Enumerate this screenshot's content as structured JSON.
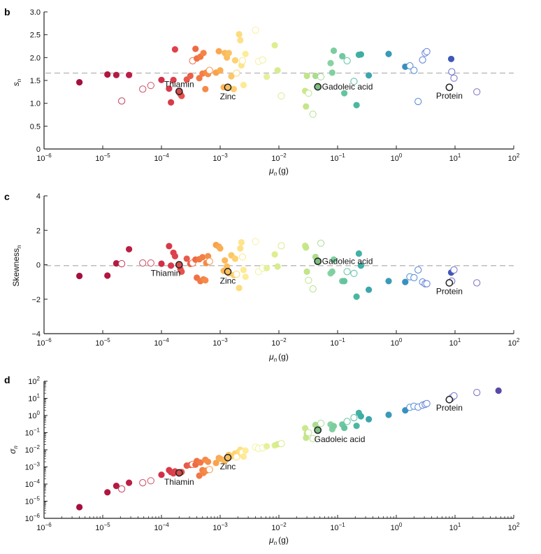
{
  "chart_data": [
    {
      "panel": "b",
      "type": "scatter",
      "title": "",
      "xlabel": "μn (g)",
      "ylabel": "sn",
      "xscale": "log",
      "yscale": "linear",
      "xlim": [
        1e-06,
        100
      ],
      "ylim": [
        0,
        3.0
      ],
      "xticks": [
        "10^-6",
        "10^-5",
        "10^-4",
        "10^-3",
        "10^-2",
        "10^-1",
        "10^0",
        "10^1",
        "10^2"
      ],
      "yticks": [
        "0",
        "0.5",
        "1.0",
        "1.5",
        "2.0",
        "2.5",
        "3.0"
      ],
      "reference_line": {
        "y": 1.66,
        "style": "dashed"
      },
      "annotations": [
        {
          "label": "Thiamin",
          "x": 0.0002,
          "y": 1.26
        },
        {
          "label": "Zinc",
          "x": 0.00135,
          "y": 1.35
        },
        {
          "label": "Gadoleic acid",
          "x": 0.046,
          "y": 1.36
        },
        {
          "label": "Protein",
          "x": 8.0,
          "y": 1.35
        }
      ]
    },
    {
      "panel": "c",
      "type": "scatter",
      "title": "",
      "xlabel": "μn (g)",
      "ylabel": "Skewnessn",
      "xscale": "log",
      "yscale": "linear",
      "xlim": [
        1e-06,
        100
      ],
      "ylim": [
        -4,
        4
      ],
      "xticks": [
        "10^-6",
        "10^-5",
        "10^-4",
        "10^-3",
        "10^-2",
        "10^-1",
        "10^0",
        "10^1",
        "10^2"
      ],
      "yticks": [
        "-4",
        "-2",
        "0",
        "2",
        "4"
      ],
      "reference_line": {
        "y": -0.05,
        "style": "dashed"
      },
      "annotations": [
        {
          "label": "Thiamin",
          "x": 0.0002,
          "y": 0.0
        },
        {
          "label": "Zinc",
          "x": 0.00135,
          "y": -0.4
        },
        {
          "label": "Gadoleic acid",
          "x": 0.046,
          "y": 0.2
        },
        {
          "label": "Protein",
          "x": 8.0,
          "y": -1.05
        }
      ]
    },
    {
      "panel": "d",
      "type": "scatter",
      "title": "",
      "xlabel": "μn (g)",
      "ylabel": "σn",
      "xscale": "log",
      "yscale": "log",
      "xlim": [
        1e-06,
        100
      ],
      "ylim": [
        1e-06,
        100
      ],
      "xticks": [
        "10^-6",
        "10^-5",
        "10^-4",
        "10^-3",
        "10^-2",
        "10^-1",
        "10^0",
        "10^1",
        "10^2"
      ],
      "yticks": [
        "10^-6",
        "10^-5",
        "10^-4",
        "10^-3",
        "10^-2",
        "10^-1",
        "10^0",
        "10^1",
        "10^2"
      ],
      "annotations": [
        {
          "label": "Thiamin",
          "x": 0.0002,
          "y": 0.00045
        },
        {
          "label": "Zinc",
          "x": 0.00135,
          "y": 0.0035
        },
        {
          "label": "Gadoleic acid",
          "x": 0.046,
          "y": 0.14
        },
        {
          "label": "Protein",
          "x": 8.0,
          "y": 8.5
        }
      ]
    }
  ],
  "points": [
    {
      "mu": 4e-06,
      "s": 1.46,
      "skew": -0.65,
      "sigma": 4.5e-06,
      "c": "#a50f3c",
      "open": false
    },
    {
      "mu": 1.2e-05,
      "s": 1.63,
      "skew": -0.63,
      "sigma": 3.3e-05,
      "c": "#b0173f",
      "open": false
    },
    {
      "mu": 1.7e-05,
      "s": 1.62,
      "skew": 0.08,
      "sigma": 7.8e-05,
      "c": "#b51a41",
      "open": false
    },
    {
      "mu": 2.1e-05,
      "s": 1.05,
      "skew": 0.06,
      "sigma": 5.2e-05,
      "c": "#c43c5a",
      "open": true
    },
    {
      "mu": 2.8e-05,
      "s": 1.62,
      "skew": 0.9,
      "sigma": 0.00012,
      "c": "#bb1e44",
      "open": false
    },
    {
      "mu": 4.8e-05,
      "s": 1.31,
      "skew": 0.1,
      "sigma": 0.00012,
      "c": "#cd4a62",
      "open": true
    },
    {
      "mu": 6.6e-05,
      "s": 1.39,
      "skew": 0.1,
      "sigma": 0.000155,
      "c": "#cf4e64",
      "open": true
    },
    {
      "mu": 0.0001,
      "s": 1.51,
      "skew": 0.06,
      "sigma": 0.00035,
      "c": "#d22e46",
      "open": false
    },
    {
      "mu": 0.000135,
      "s": 1.32,
      "skew": 1.08,
      "sigma": 0.00065,
      "c": "#d9384a",
      "open": false
    },
    {
      "mu": 0.000145,
      "s": 1.02,
      "skew": -0.05,
      "sigma": 0.0005,
      "c": "#d93a4a",
      "open": false
    },
    {
      "mu": 0.00016,
      "s": 1.51,
      "skew": 0.7,
      "sigma": 0.00042,
      "c": "#dd3f4c",
      "open": false
    },
    {
      "mu": 0.00017,
      "s": 2.18,
      "skew": 0.5,
      "sigma": 0.00055,
      "c": "#de424c",
      "open": false
    },
    {
      "mu": 0.00021,
      "s": 1.2,
      "skew": -0.25,
      "sigma": 0.00046,
      "c": "#e24c4c",
      "open": false
    },
    {
      "mu": 0.00022,
      "s": 1.16,
      "skew": -0.4,
      "sigma": 0.0005,
      "c": "#e5524c",
      "open": false
    },
    {
      "mu": 0.00027,
      "s": 1.52,
      "skew": 0.35,
      "sigma": 0.0012,
      "c": "#e85a4a",
      "open": false
    },
    {
      "mu": 0.00031,
      "s": 1.6,
      "skew": 0.05,
      "sigma": 0.0013,
      "c": "#eb6048",
      "open": false
    },
    {
      "mu": 0.00034,
      "s": 1.93,
      "skew": 0.1,
      "sigma": 0.0014,
      "c": "#ee6a4a",
      "open": true
    },
    {
      "mu": 0.00038,
      "s": 2.19,
      "skew": 0.3,
      "sigma": 0.00135,
      "c": "#ee6a44",
      "open": false
    },
    {
      "mu": 0.0004,
      "s": 1.98,
      "skew": -0.75,
      "sigma": 0.0022,
      "c": "#f07244",
      "open": false
    },
    {
      "mu": 0.00044,
      "s": 1.55,
      "skew": 0.32,
      "sigma": 0.00031,
      "c": "#f07846",
      "open": false
    },
    {
      "mu": 0.00046,
      "s": 2.02,
      "skew": -0.95,
      "sigma": 0.0018,
      "c": "#f27844",
      "open": false
    },
    {
      "mu": 0.0005,
      "s": 1.65,
      "skew": 0.44,
      "sigma": 0.00065,
      "c": "#f47f44",
      "open": false
    },
    {
      "mu": 0.00052,
      "s": 2.1,
      "skew": -0.85,
      "sigma": 0.00045,
      "c": "#f48446",
      "open": false
    },
    {
      "mu": 0.00056,
      "s": 1.31,
      "skew": -0.9,
      "sigma": 0.0026,
      "c": "#f58a48",
      "open": false
    },
    {
      "mu": 0.00058,
      "s": 1.67,
      "skew": 0.1,
      "sigma": 0.0006,
      "c": "#f58a48",
      "open": false
    },
    {
      "mu": 0.00062,
      "s": 1.64,
      "skew": 0.5,
      "sigma": 0.002,
      "c": "#f68e4a",
      "open": false
    },
    {
      "mu": 0.00066,
      "s": 1.72,
      "skew": 0.2,
      "sigma": 0.0007,
      "c": "#f7944a",
      "open": true
    },
    {
      "mu": 0.00085,
      "s": 1.67,
      "skew": 1.15,
      "sigma": 0.0017,
      "c": "#f9a24e",
      "open": false
    },
    {
      "mu": 0.00095,
      "s": 2.14,
      "skew": 1.05,
      "sigma": 0.0033,
      "c": "#faa750",
      "open": false
    },
    {
      "mu": 0.001,
      "s": 1.72,
      "skew": 0.95,
      "sigma": 0.003,
      "c": "#fbad52",
      "open": false
    },
    {
      "mu": 0.00115,
      "s": 1.35,
      "skew": -0.35,
      "sigma": 0.0025,
      "c": "#fbb558",
      "open": false
    },
    {
      "mu": 0.0012,
      "s": 2.1,
      "skew": 0.25,
      "sigma": 0.0022,
      "c": "#fbb95a",
      "open": false
    },
    {
      "mu": 0.0013,
      "s": 2.0,
      "skew": -0.1,
      "sigma": 0.003,
      "c": "#fcbd5e",
      "open": false
    },
    {
      "mu": 0.0014,
      "s": 2.1,
      "skew": -0.5,
      "sigma": 0.005,
      "c": "#fcc262",
      "open": false
    },
    {
      "mu": 0.00155,
      "s": 1.59,
      "skew": 0.55,
      "sigma": 0.0042,
      "c": "#fcc866",
      "open": false
    },
    {
      "mu": 0.0017,
      "s": 1.31,
      "skew": -0.6,
      "sigma": 0.0045,
      "c": "#fdce6c",
      "open": false
    },
    {
      "mu": 0.0018,
      "s": 1.94,
      "skew": 0.35,
      "sigma": 0.006,
      "c": "#fdd270",
      "open": false
    },
    {
      "mu": 0.0019,
      "s": 1.66,
      "skew": -0.55,
      "sigma": 0.0038,
      "c": "#fdd878",
      "open": true
    },
    {
      "mu": 0.0021,
      "s": 2.51,
      "skew": -1.35,
      "sigma": 0.008,
      "c": "#fddc7e",
      "open": false
    },
    {
      "mu": 0.0022,
      "s": 2.38,
      "skew": 0.95,
      "sigma": 0.01,
      "c": "#fee088",
      "open": false
    },
    {
      "mu": 0.0023,
      "s": 1.83,
      "skew": 1.3,
      "sigma": 0.0055,
      "c": "#fee48c",
      "open": false
    },
    {
      "mu": 0.0024,
      "s": 1.93,
      "skew": 0.45,
      "sigma": 0.007,
      "c": "#fee690",
      "open": true
    },
    {
      "mu": 0.0025,
      "s": 1.4,
      "skew": -0.3,
      "sigma": 0.004,
      "c": "#fee994",
      "open": false
    },
    {
      "mu": 0.0027,
      "s": 2.08,
      "skew": -0.7,
      "sigma": 0.009,
      "c": "#feec98",
      "open": false
    },
    {
      "mu": 0.004,
      "s": 2.6,
      "skew": 1.35,
      "sigma": 0.014,
      "c": "#f8f0a0",
      "open": true
    },
    {
      "mu": 0.0045,
      "s": 1.92,
      "skew": -0.4,
      "sigma": 0.012,
      "c": "#f3f2a0",
      "open": true
    },
    {
      "mu": 0.0053,
      "s": 1.95,
      "skew": -0.2,
      "sigma": 0.013,
      "c": "#eef29c",
      "open": true
    },
    {
      "mu": 0.0062,
      "s": 1.58,
      "skew": -0.2,
      "sigma": 0.016,
      "c": "#e6f09a",
      "open": false
    },
    {
      "mu": 0.0085,
      "s": 2.27,
      "skew": 0.6,
      "sigma": 0.018,
      "c": "#ddee90",
      "open": false
    },
    {
      "mu": 0.0095,
      "s": 1.72,
      "skew": -0.1,
      "sigma": 0.021,
      "c": "#d6ec8e",
      "open": false
    },
    {
      "mu": 0.011,
      "s": 1.16,
      "skew": 1.1,
      "sigma": 0.023,
      "c": "#d6ec8e",
      "open": true
    },
    {
      "mu": 0.028,
      "s": 1.27,
      "skew": 1.1,
      "sigma": 0.18,
      "c": "#cde88a",
      "open": false
    },
    {
      "mu": 0.029,
      "s": 0.93,
      "skew": 1.0,
      "sigma": 0.05,
      "c": "#c6e68a",
      "open": false
    },
    {
      "mu": 0.03,
      "s": 1.6,
      "skew": -0.4,
      "sigma": 0.09,
      "c": "#c2e48a",
      "open": false
    },
    {
      "mu": 0.032,
      "s": 1.22,
      "skew": -0.9,
      "sigma": 0.1,
      "c": "#bfe38c",
      "open": true
    },
    {
      "mu": 0.038,
      "s": 0.76,
      "skew": -1.4,
      "sigma": 0.045,
      "c": "#b4e08c",
      "open": true
    },
    {
      "mu": 0.042,
      "s": 1.6,
      "skew": 0.45,
      "sigma": 0.28,
      "c": "#acdc8e",
      "open": false
    },
    {
      "mu": 0.052,
      "s": 1.58,
      "skew": 1.25,
      "sigma": 0.35,
      "c": "#a8dc96",
      "open": true
    },
    {
      "mu": 0.076,
      "s": 1.88,
      "skew": -0.5,
      "sigma": 0.3,
      "c": "#88d3a0",
      "open": false
    },
    {
      "mu": 0.081,
      "s": 1.67,
      "skew": -0.4,
      "sigma": 0.16,
      "c": "#80d0a0",
      "open": false
    },
    {
      "mu": 0.086,
      "s": 2.15,
      "skew": 0.3,
      "sigma": 0.24,
      "c": "#7ccd9e",
      "open": false
    },
    {
      "mu": 0.12,
      "s": 2.03,
      "skew": -0.95,
      "sigma": 0.3,
      "c": "#6fc8a0",
      "open": false
    },
    {
      "mu": 0.13,
      "s": 1.22,
      "skew": -0.95,
      "sigma": 0.19,
      "c": "#64c4a0",
      "open": false
    },
    {
      "mu": 0.145,
      "s": 1.93,
      "skew": -0.4,
      "sigma": 0.45,
      "c": "#62c3a0",
      "open": true
    },
    {
      "mu": 0.19,
      "s": 1.48,
      "skew": -0.5,
      "sigma": 0.75,
      "c": "#56bda0",
      "open": true
    },
    {
      "mu": 0.21,
      "s": 0.96,
      "skew": -1.85,
      "sigma": 0.25,
      "c": "#4ab8a0",
      "open": false
    },
    {
      "mu": 0.23,
      "s": 2.06,
      "skew": 0.65,
      "sigma": 1.4,
      "c": "#42b2a2",
      "open": false
    },
    {
      "mu": 0.25,
      "s": 2.07,
      "skew": -0.05,
      "sigma": 0.9,
      "c": "#3eaea4",
      "open": false
    },
    {
      "mu": 0.34,
      "s": 1.61,
      "skew": -1.45,
      "sigma": 0.6,
      "c": "#3ca6ae",
      "open": false
    },
    {
      "mu": 0.74,
      "s": 2.08,
      "skew": -0.95,
      "sigma": 1.1,
      "c": "#3a9ab8",
      "open": false
    },
    {
      "mu": 1.42,
      "s": 1.8,
      "skew": -1.0,
      "sigma": 2.0,
      "c": "#3890c0",
      "open": false
    },
    {
      "mu": 1.7,
      "s": 1.82,
      "skew": -0.7,
      "sigma": 3.0,
      "c": "#4a8ed0",
      "open": true
    },
    {
      "mu": 2.0,
      "s": 1.72,
      "skew": -0.75,
      "sigma": 3.5,
      "c": "#4e8ad2",
      "open": true
    },
    {
      "mu": 2.35,
      "s": 1.04,
      "skew": -0.3,
      "sigma": 3.1,
      "c": "#5286d4",
      "open": true
    },
    {
      "mu": 2.8,
      "s": 1.95,
      "skew": -1.0,
      "sigma": 4.0,
      "c": "#5a82d6",
      "open": true
    },
    {
      "mu": 3.1,
      "s": 2.1,
      "skew": -1.1,
      "sigma": 4.5,
      "c": "#5e7ed6",
      "open": true
    },
    {
      "mu": 3.3,
      "s": 2.13,
      "skew": -1.1,
      "sigma": 5.0,
      "c": "#5e7ed6",
      "open": true
    },
    {
      "mu": 8.6,
      "s": 1.97,
      "skew": -0.45,
      "sigma": 9.5,
      "c": "#4058b8",
      "open": false
    },
    {
      "mu": 8.8,
      "s": 1.69,
      "skew": -0.95,
      "sigma": 11,
      "c": "#6a6cc8",
      "open": true
    },
    {
      "mu": 9.6,
      "s": 1.55,
      "skew": -0.3,
      "sigma": 14,
      "c": "#7070c8",
      "open": true
    },
    {
      "mu": 23.5,
      "s": 1.25,
      "skew": -1.05,
      "sigma": 22,
      "c": "#7a70c4",
      "open": true
    },
    {
      "mu": 55,
      "s": null,
      "skew": null,
      "sigma": 28,
      "c": "#5a48a8",
      "open": false
    }
  ],
  "highlighted": [
    {
      "label": "Thiamin",
      "mu": 0.0002,
      "s": 1.26,
      "skew": 0.0,
      "sigma": 0.00045,
      "c": "#d84a4a"
    },
    {
      "label": "Zinc",
      "mu": 0.00135,
      "s": 1.35,
      "skew": -0.4,
      "sigma": 0.0035,
      "c": "#fbbf60"
    },
    {
      "label": "Gadoleic acid",
      "mu": 0.046,
      "s": 1.36,
      "skew": 0.2,
      "sigma": 0.14,
      "c": "#7cbf80"
    },
    {
      "label": "Protein",
      "mu": 8.0,
      "s": 1.35,
      "skew": -1.05,
      "sigma": 8.5,
      "c": "#ffffff"
    }
  ],
  "labels": {
    "panel_b": "b",
    "panel_c": "c",
    "panel_d": "d",
    "xlabel_mu": "μ",
    "xlabel_sub": "n",
    "xlabel_unit": "(g)",
    "ylabel_b": "s",
    "ylabel_b_sub": "n",
    "ylabel_c": "Skewness",
    "ylabel_c_sub": "n",
    "ylabel_d": "σ",
    "ylabel_d_sub": "n",
    "b_yticks": [
      "0",
      "0.5",
      "1.0",
      "1.5",
      "2.0",
      "2.5",
      "3.0"
    ],
    "c_yticks": [
      "−4",
      "−2",
      "0",
      "2",
      "4"
    ],
    "xtick_exps": [
      "−6",
      "−5",
      "−4",
      "−3",
      "−2",
      "−1",
      "0",
      "1",
      "2"
    ],
    "d_ytick_exps": [
      "−6",
      "−5",
      "−4",
      "−3",
      "−2",
      "−1",
      "0",
      "1",
      "2"
    ],
    "ten": "10"
  }
}
